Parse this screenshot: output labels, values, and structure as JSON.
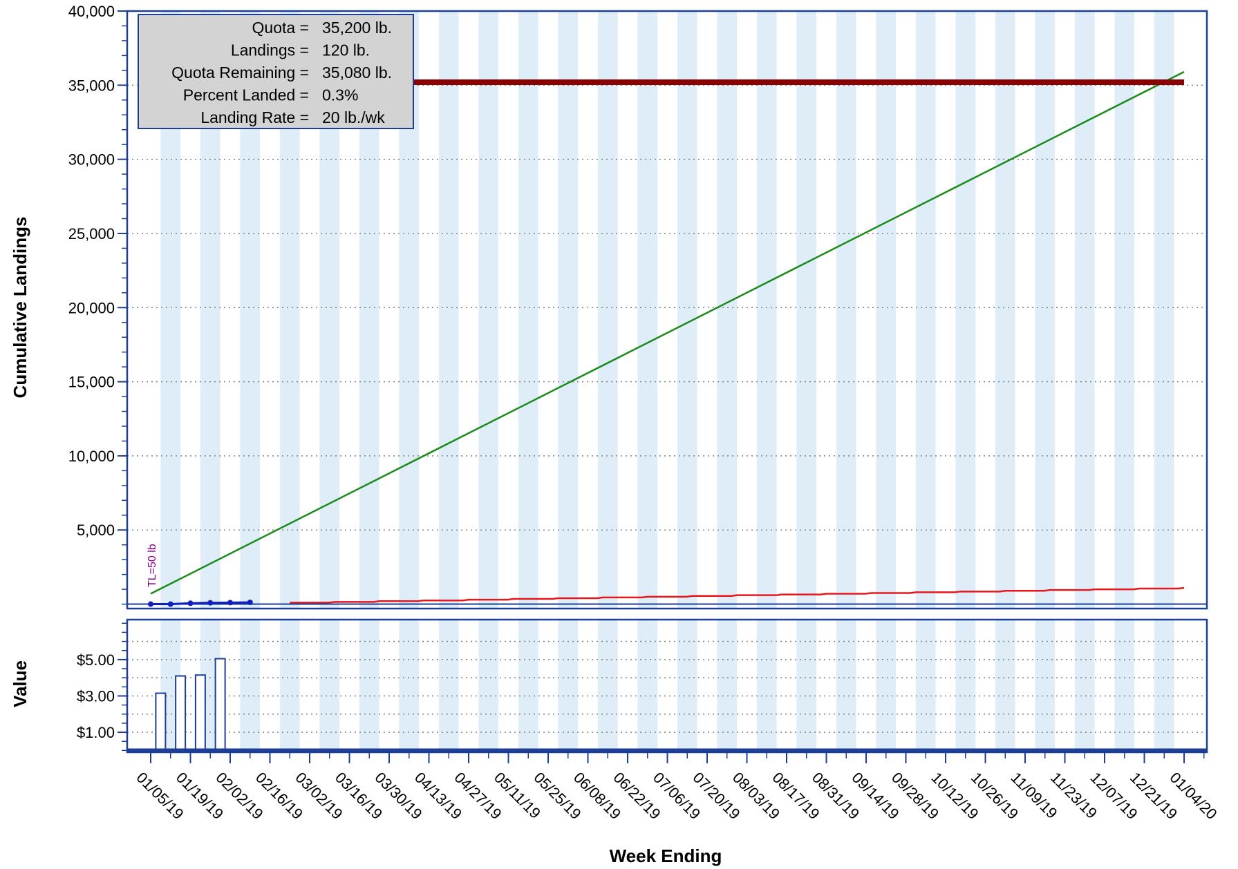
{
  "colors": {
    "frame": "#1c3f95",
    "band": "#deedf7",
    "grid": "#808080",
    "quota_line": "#8b0000",
    "projection": "#1a8a1a",
    "trend": "#e8161b",
    "landings": "#1020c0",
    "bars": "#1c3f95",
    "bar_fill": "#ffffff",
    "annotation": "#8b008b",
    "info_fill": "#d3d3d3"
  },
  "info_box": {
    "rows": [
      {
        "label": "Quota =",
        "value": "35,200 lb."
      },
      {
        "label": "Landings =",
        "value": "120 lb."
      },
      {
        "label": "Quota Remaining =",
        "value": "35,080 lb."
      },
      {
        "label": "Percent Landed =",
        "value": "0.3%"
      },
      {
        "label": "Landing Rate =",
        "value": "20 lb./wk"
      }
    ]
  },
  "chart_data": [
    {
      "type": "line",
      "panel": "top",
      "ylabel": "Cumulative Landings",
      "ylim": [
        -300,
        40000
      ],
      "yticks": [
        5000,
        10000,
        15000,
        20000,
        25000,
        30000,
        35000,
        40000
      ],
      "ytick_labels": [
        "5,000",
        "10,000",
        "15,000",
        "20,000",
        "25,000",
        "30,000",
        "35,000",
        "40,000"
      ],
      "grid": true,
      "annotation": "TL=50 lb",
      "series": [
        {
          "name": "Quota",
          "x_start": "01/05/19",
          "x_end": "01/04/20",
          "value": 35200
        },
        {
          "x_start": "01/05/19",
          "x_end": "01/04/20",
          "values": [
            700,
            35900
          ]
        },
        {
          "x_start": "02/23/19",
          "x_end": "01/04/20",
          "values": [
            100,
            1100
          ]
        },
        {
          "name": "Landings",
          "x": [
            "01/05/19",
            "01/12/19",
            "01/19/19",
            "01/26/19",
            "02/02/19",
            "02/09/19"
          ],
          "values": [
            0,
            0,
            60,
            90,
            100,
            120
          ]
        }
      ]
    },
    {
      "type": "bar",
      "panel": "bottom",
      "ylabel": "Value",
      "ylim": [
        -0.1,
        7.2
      ],
      "yticks": [
        1,
        3,
        5
      ],
      "ytick_labels": [
        "$1.00",
        "$3.00",
        "$5.00"
      ],
      "grid": true,
      "categories": [
        "01/12/19",
        "01/19/19",
        "01/26/19",
        "02/02/19"
      ],
      "values": [
        3.15,
        4.1,
        4.15,
        5.05
      ]
    }
  ],
  "x_axis": {
    "title": "Week Ending",
    "start": "01/05/19",
    "end": "01/04/20",
    "tick_labels": [
      "01/05/19",
      "01/19/19",
      "02/02/19",
      "02/16/19",
      "03/02/19",
      "03/16/19",
      "03/30/19",
      "04/13/19",
      "04/27/19",
      "05/11/19",
      "05/25/19",
      "06/08/19",
      "06/22/19",
      "07/06/19",
      "07/20/19",
      "08/03/19",
      "08/17/19",
      "08/31/19",
      "09/14/19",
      "09/28/19",
      "10/12/19",
      "10/26/19",
      "11/09/19",
      "11/23/19",
      "12/07/19",
      "12/21/19",
      "01/04/20"
    ]
  }
}
